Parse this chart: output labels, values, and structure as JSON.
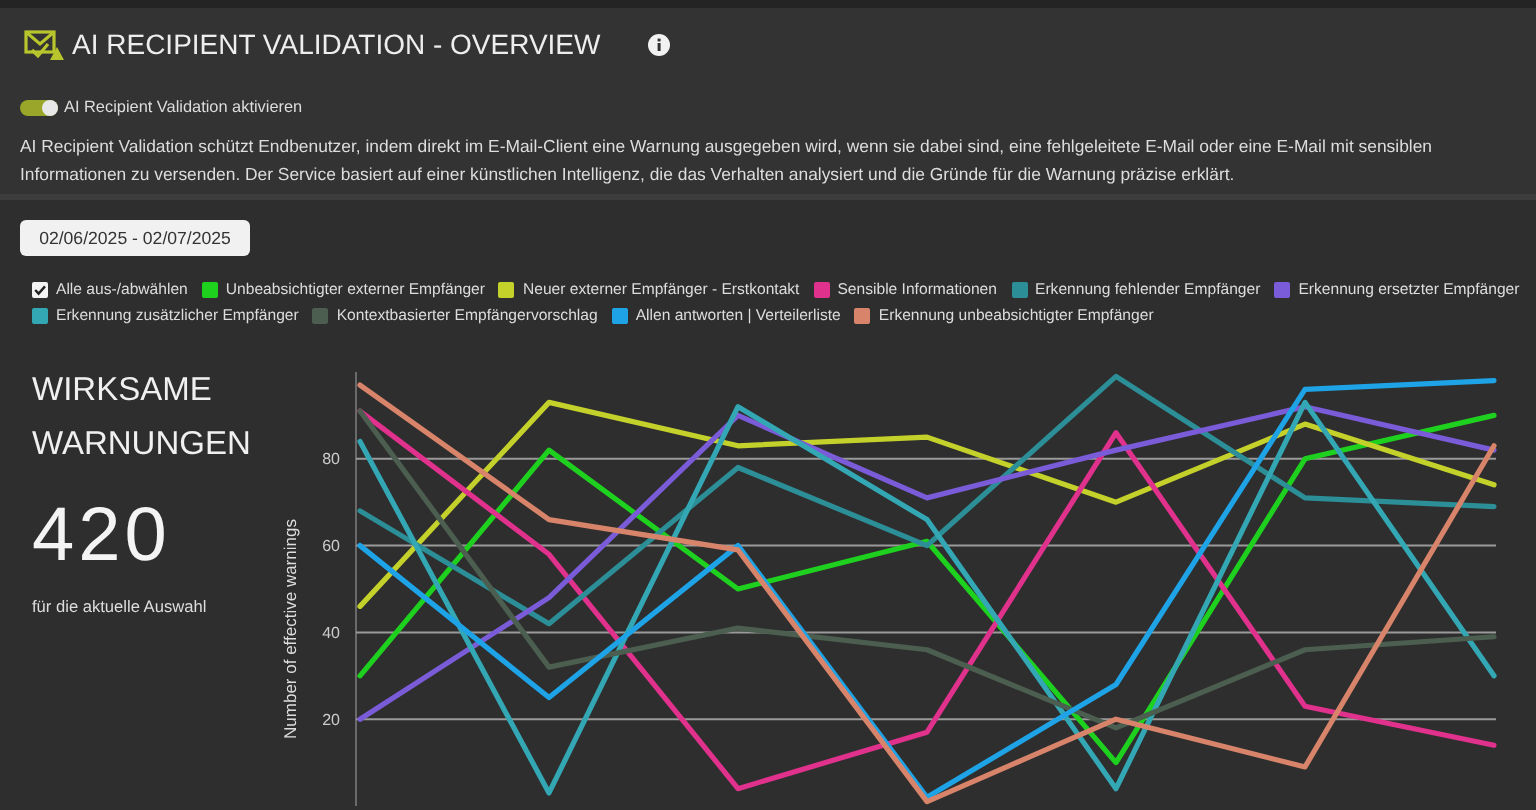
{
  "chart_data": [
    {
      "type": "line",
      "title": "AI RECIPIENT VALIDATION - OVERVIEW",
      "subtitle": "AI Recipient Validation schützt Endbenutzer, indem direkt im E-Mail-Client eine Warnung ausgegeben wird, wenn sie dabei sind, eine fehlgeleitete E-Mail oder eine E-Mail mit sensiblen Informationen zu versenden. Der Service basiert auf einer künstlichen Intelligenz, die das Verhalten analysiert und die Gründe für die Warnung präzise erklärt.",
      "annotations": [
        "AI Recipient Validation aktivieren",
        "02/06/2025 - 02/07/2025",
        "Alle aus-/abwählen"
      ],
      "ylabel": "Number of effective warnings",
      "categories": [
        null,
        null,
        null,
        null,
        null,
        null,
        null
      ],
      "series": [
        {
          "name": "Unbeabsichtigter externer Empfänger",
          "color": "#1fd11f",
          "values": [
            30,
            82,
            50,
            61,
            10,
            80,
            90
          ]
        },
        {
          "name": "Neuer externer Empfänger - Erstkontakt",
          "color": "#c5d12b",
          "values": [
            46,
            93,
            83,
            85,
            70,
            88,
            74
          ]
        },
        {
          "name": "Sensible Informationen",
          "color": "#e0318c",
          "values": [
            91,
            58,
            4,
            17,
            86,
            23,
            14
          ]
        },
        {
          "name": "Erkennung fehlender Empfänger",
          "color": "#2c8e96",
          "values": [
            68,
            42,
            78,
            60,
            99,
            71,
            69
          ]
        },
        {
          "name": "Erkennung ersetzter Empfänger",
          "color": "#7a5bd8",
          "values": [
            20,
            48,
            90,
            71,
            82,
            92,
            82
          ]
        },
        {
          "name": "Erkennung zusätzlicher Empfänger",
          "color": "#33a7b3",
          "values": [
            84,
            3,
            92,
            66,
            4,
            93,
            30
          ]
        },
        {
          "name": "Kontextbasierter Empfängervorschlag",
          "color": "#4b5e4f",
          "values": [
            91,
            32,
            41,
            36,
            18,
            36,
            39
          ]
        },
        {
          "name": "Allen antworten | Verteilerliste",
          "color": "#1ea3e6",
          "values": [
            60,
            25,
            60,
            2,
            28,
            96,
            98
          ]
        },
        {
          "name": "Erkennung unbeabsichtigter Empfänger",
          "color": "#d8846a",
          "values": [
            97,
            66,
            59,
            1,
            20,
            9,
            83
          ]
        }
      ],
      "ylim": [
        0,
        100
      ],
      "yticks": [
        20,
        40,
        60,
        80
      ],
      "grid": "y",
      "legend": "top",
      "tick_labels": "y"
    },
    {
      "type": "other",
      "title": "WIRKSAME WARNUNGEN",
      "annotations": [
        "420",
        "für die aktuelle Auswahl"
      ]
    }
  ]
}
